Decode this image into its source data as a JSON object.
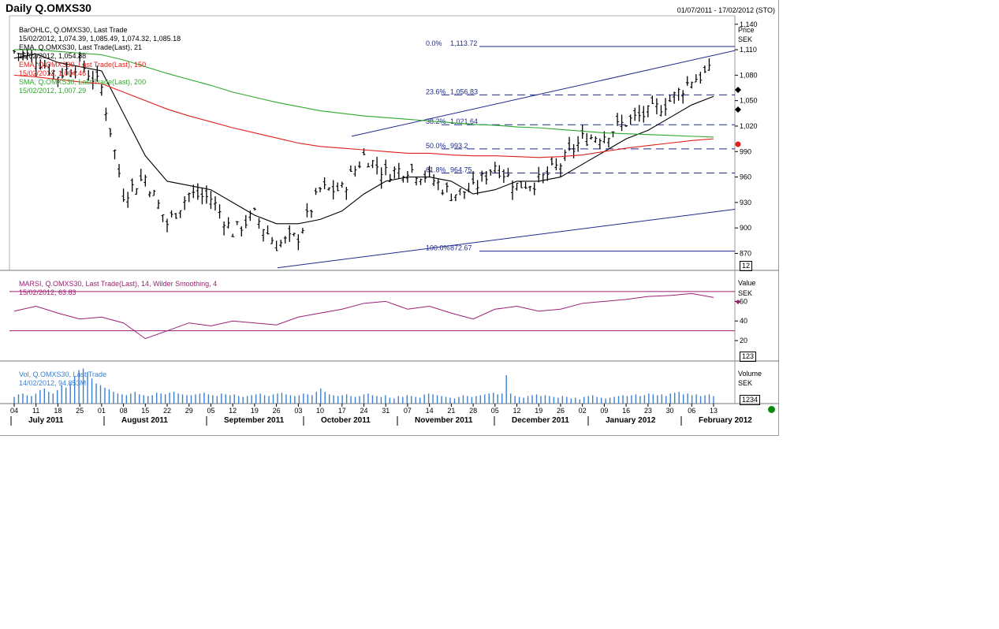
{
  "header": {
    "title": "Daily Q.OMXS30",
    "date_range": "01/07/2011 - 17/02/2012 (STO)"
  },
  "panels": {
    "price": {
      "legend": [
        {
          "label": "BarOHLC, Q.OMXS30, Last Trade",
          "color": "#000000"
        },
        {
          "label": "15/02/2012, 1,074.39, 1,085.49, 1,074.32, 1,085.18",
          "color": "#000000"
        },
        {
          "label": "EMA, Q.OMXS30, Last Trade(Last), 21",
          "color": "#000000"
        },
        {
          "label": "15/02/2012, 1,054.88",
          "color": "#000000"
        },
        {
          "label": "EMA, Q.OMXS30, Last Trade(Last), 150",
          "color": "#e0201c"
        },
        {
          "label": "15/02/2012, 1,004.46",
          "color": "#e0201c"
        },
        {
          "label": "SMA, Q.OMXS30, Last Trade(Last), 200",
          "color": "#2ea82e"
        },
        {
          "label": "15/02/2012, 1,007.29",
          "color": "#2ea82e"
        }
      ],
      "axis_title": "Price",
      "axis_unit": "SEK",
      "badge": "12"
    },
    "rsi": {
      "legend": [
        {
          "label": "MARSI, Q.OMXS30, Last Trade(Last), 14, Wilder Smoothing, 4",
          "color": "#9b1f73"
        },
        {
          "label": "15/02/2012, 63.83",
          "color": "#9b1f73"
        }
      ],
      "axis_title": "Value",
      "axis_unit": "SEK",
      "badge": "123"
    },
    "volume": {
      "legend": [
        {
          "label": "Vol, Q.OMXS30, Last Trade",
          "color": "#3a7fd1"
        },
        {
          "label": "14/02/2012, 94.853M",
          "color": "#3a7fd1"
        }
      ],
      "axis_title": "Volume",
      "axis_unit": "SEK",
      "badge": "1234"
    }
  },
  "colors": {
    "price_bars": "#000000",
    "ema21": "#000000",
    "ema150": "#e0201c",
    "sma200": "#2ea82e",
    "fib": "#1f2a8c",
    "rsi": "#9b1f73",
    "volume": "#3a7fd1",
    "status": "#0a8a0a"
  },
  "chart_data": [
    {
      "type": "line",
      "panel": "price",
      "title": "Daily Q.OMXS30",
      "y_ticks": [
        "1,140",
        "1,110",
        "1,080",
        "1,050",
        "1,020",
        "990",
        "960",
        "930",
        "900",
        "870"
      ],
      "ylim": [
        850,
        1150
      ],
      "x_day_labels": [
        "04",
        "11",
        "18",
        "25",
        "01",
        "08",
        "15",
        "22",
        "29",
        "05",
        "12",
        "19",
        "26",
        "03",
        "10",
        "17",
        "24",
        "31",
        "07",
        "14",
        "21",
        "28",
        "05",
        "12",
        "19",
        "26",
        "02",
        "09",
        "16",
        "23",
        "30",
        "06",
        "13"
      ],
      "x_month_labels": [
        "July 2011",
        "August 2011",
        "September 2011",
        "October 2011",
        "November 2011",
        "December 2011",
        "January 2012",
        "February 2012"
      ],
      "ohlc_sampled": [
        {
          "date": "2011-07-04",
          "close": 1108
        },
        {
          "date": "2011-07-11",
          "close": 1100
        },
        {
          "date": "2011-07-18",
          "close": 1080
        },
        {
          "date": "2011-07-25",
          "close": 1095
        },
        {
          "date": "2011-08-01",
          "close": 1065
        },
        {
          "date": "2011-08-08",
          "close": 940
        },
        {
          "date": "2011-08-15",
          "close": 960
        },
        {
          "date": "2011-08-22",
          "close": 905
        },
        {
          "date": "2011-08-29",
          "close": 940
        },
        {
          "date": "2011-09-05",
          "close": 935
        },
        {
          "date": "2011-09-12",
          "close": 895
        },
        {
          "date": "2011-09-19",
          "close": 915
        },
        {
          "date": "2011-09-26",
          "close": 880
        },
        {
          "date": "2011-10-03",
          "close": 890
        },
        {
          "date": "2011-10-10",
          "close": 945
        },
        {
          "date": "2011-10-17",
          "close": 945
        },
        {
          "date": "2011-10-24",
          "close": 985
        },
        {
          "date": "2011-10-31",
          "close": 965
        },
        {
          "date": "2011-11-07",
          "close": 970
        },
        {
          "date": "2011-11-14",
          "close": 960
        },
        {
          "date": "2011-11-21",
          "close": 940
        },
        {
          "date": "2011-11-28",
          "close": 945
        },
        {
          "date": "2011-12-05",
          "close": 975
        },
        {
          "date": "2011-12-12",
          "close": 950
        },
        {
          "date": "2011-12-19",
          "close": 955
        },
        {
          "date": "2011-12-26",
          "close": 975
        },
        {
          "date": "2012-01-02",
          "close": 1005
        },
        {
          "date": "2012-01-09",
          "close": 1010
        },
        {
          "date": "2012-01-16",
          "close": 1025
        },
        {
          "date": "2012-01-23",
          "close": 1035
        },
        {
          "date": "2012-01-30",
          "close": 1050
        },
        {
          "date": "2012-02-06",
          "close": 1075
        },
        {
          "date": "2012-02-15",
          "open": 1074.39,
          "high": 1085.49,
          "low": 1074.32,
          "close": 1085.18
        }
      ],
      "series": [
        {
          "name": "EMA 21",
          "values_at_week": [
            1100,
            1105,
            1095,
            1090,
            1085,
            1035,
            985,
            955,
            950,
            945,
            930,
            915,
            905,
            905,
            910,
            920,
            940,
            955,
            960,
            960,
            955,
            940,
            945,
            955,
            955,
            960,
            975,
            990,
            1005,
            1015,
            1030,
            1045,
            1055
          ]
        },
        {
          "name": "EMA 150",
          "values_at_week": [
            1080,
            1078,
            1075,
            1072,
            1070,
            1060,
            1050,
            1040,
            1032,
            1025,
            1018,
            1012,
            1006,
            1000,
            996,
            994,
            992,
            990,
            988,
            988,
            986,
            985,
            985,
            984,
            983,
            984,
            986,
            990,
            994,
            997,
            1000,
            1003,
            1005
          ]
        },
        {
          "name": "SMA 200",
          "values_at_week": [
            1110,
            1110,
            1108,
            1106,
            1104,
            1098,
            1090,
            1082,
            1075,
            1068,
            1060,
            1054,
            1048,
            1043,
            1038,
            1035,
            1032,
            1030,
            1028,
            1026,
            1024,
            1022,
            1021,
            1019,
            1018,
            1016,
            1014,
            1012,
            1011,
            1010,
            1009,
            1008,
            1007
          ]
        }
      ],
      "fibonacci": [
        {
          "label": "0.0%",
          "value": "1,113.72"
        },
        {
          "label": "23.6%",
          "value": "1,056.83"
        },
        {
          "label": "38.2%",
          "value": "1,021.64"
        },
        {
          "label": "50.0%",
          "value": "993.2"
        },
        {
          "label": "61.8%",
          "value": "964.75"
        },
        {
          "label": "100.0%",
          "value": "872.67"
        }
      ]
    },
    {
      "type": "line",
      "panel": "rsi",
      "y_ticks": [
        "60",
        "40",
        "20"
      ],
      "ylim": [
        0,
        90
      ],
      "reference_lines": [
        70,
        30
      ],
      "values_at_week": [
        50,
        55,
        48,
        42,
        44,
        38,
        22,
        30,
        38,
        35,
        40,
        38,
        36,
        44,
        48,
        52,
        58,
        60,
        52,
        55,
        48,
        42,
        52,
        55,
        50,
        52,
        58,
        60,
        62,
        65,
        66,
        68,
        64
      ]
    },
    {
      "type": "bar",
      "panel": "volume",
      "ylim": [
        0,
        250
      ],
      "values": [
        40,
        55,
        60,
        50,
        45,
        60,
        80,
        90,
        70,
        60,
        80,
        110,
        95,
        120,
        160,
        200,
        210,
        190,
        150,
        120,
        110,
        95,
        85,
        70,
        60,
        55,
        50,
        60,
        70,
        55,
        50,
        45,
        50,
        65,
        60,
        55,
        65,
        70,
        60,
        55,
        50,
        50,
        55,
        60,
        65,
        55,
        50,
        45,
        60,
        55,
        50,
        55,
        45,
        40,
        45,
        50,
        55,
        60,
        50,
        45,
        55,
        60,
        65,
        55,
        50,
        45,
        50,
        60,
        55,
        50,
        70,
        90,
        70,
        55,
        50,
        45,
        50,
        55,
        45,
        40,
        45,
        55,
        60,
        50,
        45,
        40,
        50,
        35,
        30,
        45,
        40,
        50,
        45,
        40,
        35,
        55,
        60,
        55,
        50,
        45,
        40,
        35,
        30,
        40,
        50,
        45,
        40,
        45,
        50,
        55,
        60,
        65,
        55,
        60,
        170,
        60,
        45,
        40,
        35,
        45,
        50,
        55,
        45,
        50,
        45,
        40,
        35,
        45,
        40,
        30,
        35,
        25,
        40,
        45,
        50,
        40,
        35,
        30,
        35,
        40,
        45,
        50,
        45,
        50,
        55,
        45,
        50,
        60,
        55,
        50,
        55,
        45,
        60,
        65,
        70,
        55,
        60,
        50,
        55,
        45,
        50,
        55,
        45
      ]
    }
  ]
}
